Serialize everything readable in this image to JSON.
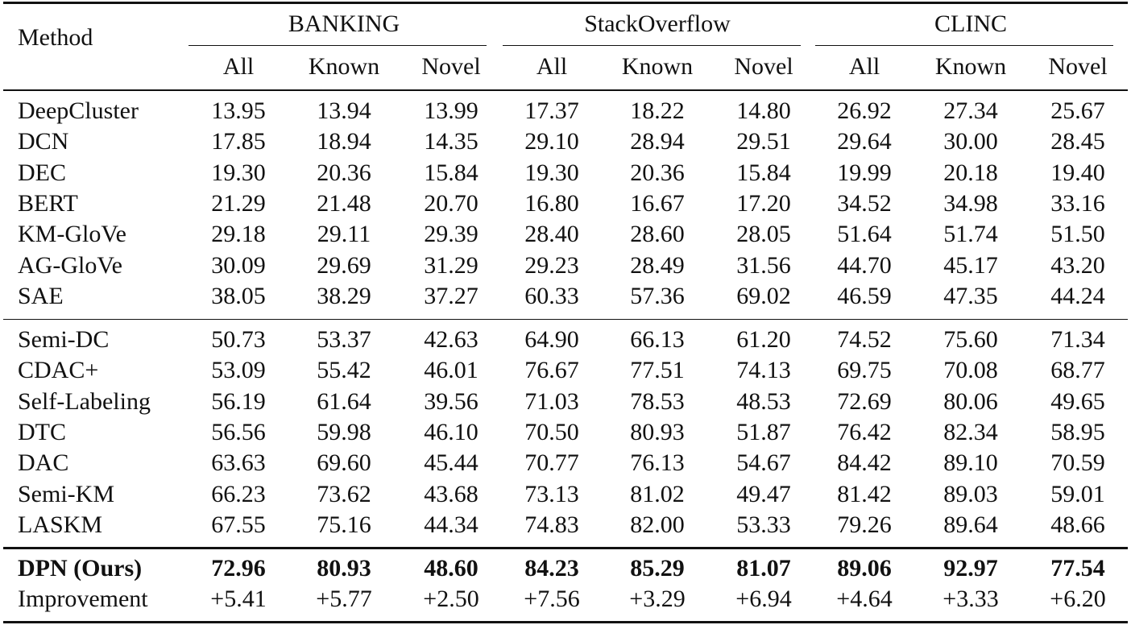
{
  "table": {
    "header": {
      "method": "Method",
      "groups": [
        {
          "name": "BANKING",
          "columns": [
            "All",
            "Known",
            "Novel"
          ]
        },
        {
          "name": "StackOverflow",
          "columns": [
            "All",
            "Known",
            "Novel"
          ]
        },
        {
          "name": "CLINC",
          "columns": [
            "All",
            "Known",
            "Novel"
          ]
        }
      ]
    },
    "sections": [
      {
        "rows": [
          {
            "method": "DeepCluster",
            "values": [
              "13.95",
              "13.94",
              "13.99",
              "17.37",
              "18.22",
              "14.80",
              "26.92",
              "27.34",
              "25.67"
            ]
          },
          {
            "method": "DCN",
            "values": [
              "17.85",
              "18.94",
              "14.35",
              "29.10",
              "28.94",
              "29.51",
              "29.64",
              "30.00",
              "28.45"
            ]
          },
          {
            "method": "DEC",
            "values": [
              "19.30",
              "20.36",
              "15.84",
              "19.30",
              "20.36",
              "15.84",
              "19.99",
              "20.18",
              "19.40"
            ]
          },
          {
            "method": "BERT",
            "values": [
              "21.29",
              "21.48",
              "20.70",
              "16.80",
              "16.67",
              "17.20",
              "34.52",
              "34.98",
              "33.16"
            ]
          },
          {
            "method": "KM-GloVe",
            "values": [
              "29.18",
              "29.11",
              "29.39",
              "28.40",
              "28.60",
              "28.05",
              "51.64",
              "51.74",
              "51.50"
            ]
          },
          {
            "method": "AG-GloVe",
            "values": [
              "30.09",
              "29.69",
              "31.29",
              "29.23",
              "28.49",
              "31.56",
              "44.70",
              "45.17",
              "43.20"
            ]
          },
          {
            "method": "SAE",
            "values": [
              "38.05",
              "38.29",
              "37.27",
              "60.33",
              "57.36",
              "69.02",
              "46.59",
              "47.35",
              "44.24"
            ]
          }
        ]
      },
      {
        "rows": [
          {
            "method": "Semi-DC",
            "values": [
              "50.73",
              "53.37",
              "42.63",
              "64.90",
              "66.13",
              "61.20",
              "74.52",
              "75.60",
              "71.34"
            ]
          },
          {
            "method": "CDAC+",
            "values": [
              "53.09",
              "55.42",
              "46.01",
              "76.67",
              "77.51",
              "74.13",
              "69.75",
              "70.08",
              "68.77"
            ]
          },
          {
            "method": "Self-Labeling",
            "values": [
              "56.19",
              "61.64",
              "39.56",
              "71.03",
              "78.53",
              "48.53",
              "72.69",
              "80.06",
              "49.65"
            ]
          },
          {
            "method": "DTC",
            "values": [
              "56.56",
              "59.98",
              "46.10",
              "70.50",
              "80.93",
              "51.87",
              "76.42",
              "82.34",
              "58.95"
            ]
          },
          {
            "method": "DAC",
            "values": [
              "63.63",
              "69.60",
              "45.44",
              "70.77",
              "76.13",
              "54.67",
              "84.42",
              "89.10",
              "70.59"
            ]
          },
          {
            "method": "Semi-KM",
            "values": [
              "66.23",
              "73.62",
              "43.68",
              "73.13",
              "81.02",
              "49.47",
              "81.42",
              "89.03",
              "59.01"
            ]
          },
          {
            "method": "LASKM",
            "values": [
              "67.55",
              "75.16",
              "44.34",
              "74.83",
              "82.00",
              "53.33",
              "79.26",
              "89.64",
              "48.66"
            ]
          }
        ]
      },
      {
        "rows": [
          {
            "method": "DPN (Ours)",
            "values": [
              "72.96",
              "80.93",
              "48.60",
              "84.23",
              "85.29",
              "81.07",
              "89.06",
              "92.97",
              "77.54"
            ]
          },
          {
            "method": "Improvement",
            "values": [
              "+5.41",
              "+5.77",
              "+2.50",
              "+7.56",
              "+3.29",
              "+6.94",
              "+4.64",
              "+3.33",
              "+6.20"
            ]
          }
        ]
      }
    ]
  }
}
